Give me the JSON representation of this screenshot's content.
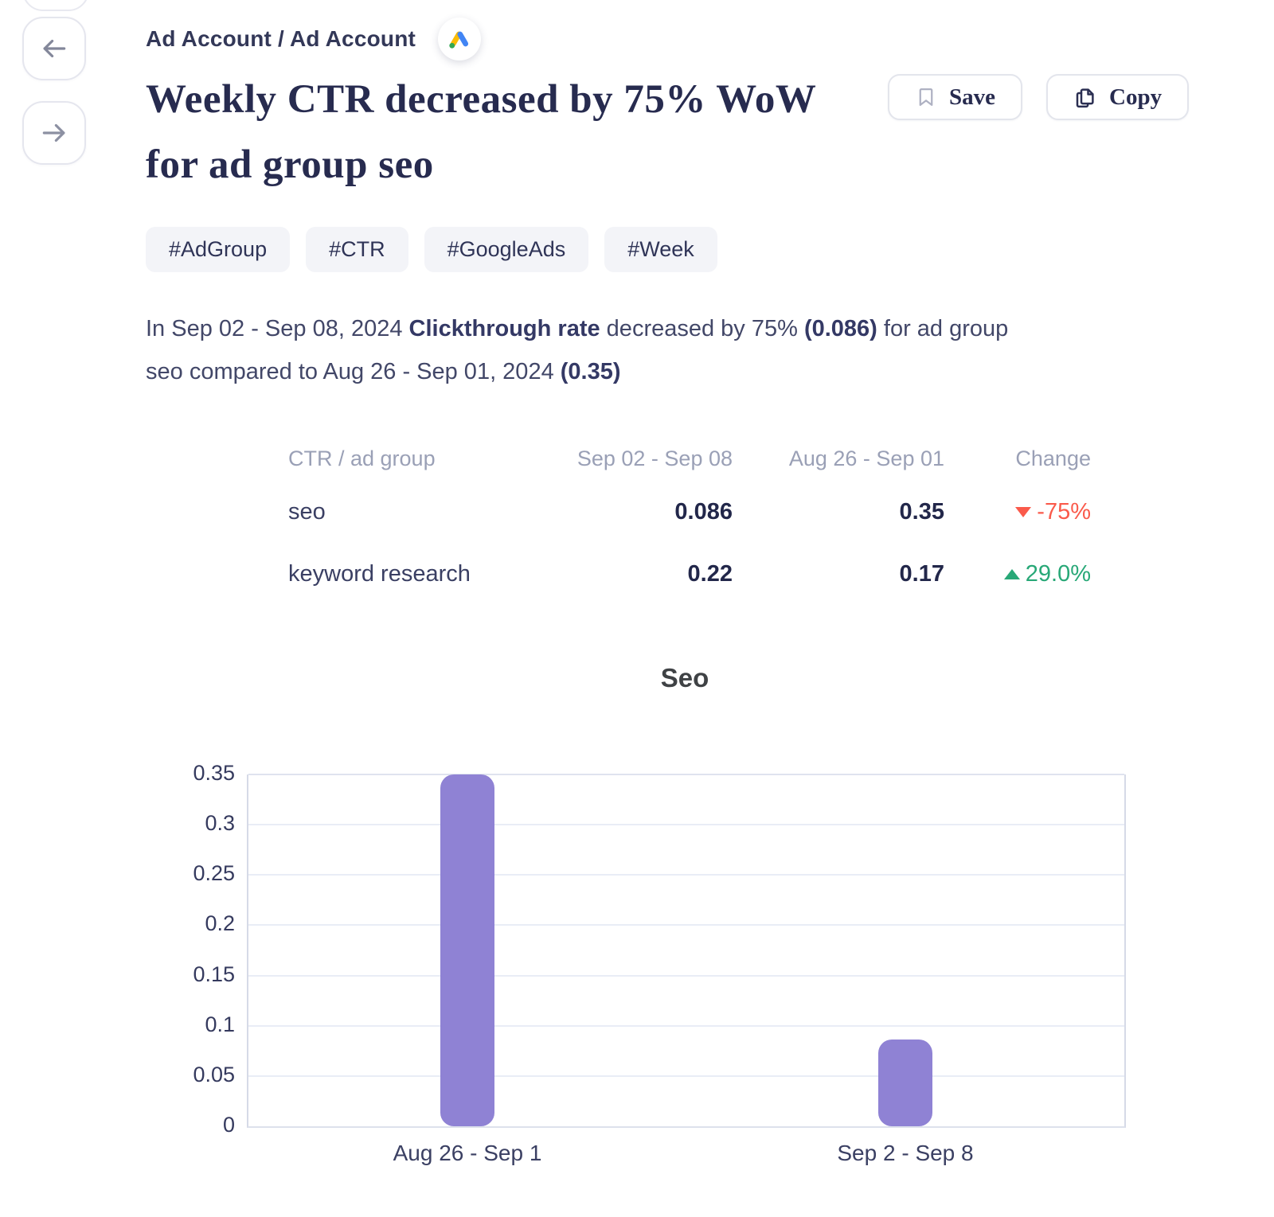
{
  "colors": {
    "accent_purple": "#8f82d4",
    "negative_red": "#fa5a4b",
    "positive_green": "#28a877"
  },
  "nav": {
    "back_icon": "arrow-left-icon",
    "forward_icon": "arrow-right-icon"
  },
  "breadcrumb": {
    "path": "Ad Account / Ad Account",
    "icon": "google-ads-icon"
  },
  "header": {
    "title_lines": [
      "Weekly CTR decreased by 75% WoW",
      "for ad group seo"
    ],
    "save_label": "Save",
    "save_icon": "bookmark-icon",
    "copy_label": "Copy",
    "copy_icon": "copy-icon"
  },
  "tags": [
    "#AdGroup",
    "#CTR",
    "#GoogleAds",
    "#Week"
  ],
  "summary": {
    "lines": [
      [
        {
          "t": "In Sep 02 - Sep 08, 2024 "
        },
        {
          "t": "Clickthrough rate",
          "b": true
        },
        {
          "t": " decreased by 75% "
        },
        {
          "t": "(0.086)",
          "b": true
        },
        {
          "t": " for ad group"
        }
      ],
      [
        {
          "t": "seo compared to Aug 26 - Sep 01, 2024 "
        },
        {
          "t": "(0.35)",
          "b": true
        }
      ]
    ]
  },
  "table": {
    "columns": [
      "CTR / ad group",
      "Sep 02 - Sep 08",
      "Aug 26 - Sep 01",
      "Change"
    ],
    "rows": [
      {
        "name": "seo",
        "current": "0.086",
        "previous": "0.35",
        "change": "-75%",
        "direction": "down"
      },
      {
        "name": "keyword research",
        "current": "0.22",
        "previous": "0.17",
        "change": "29.0%",
        "direction": "up"
      }
    ]
  },
  "chart_data": {
    "type": "bar",
    "title": "Seo",
    "categories": [
      "Aug 26 - Sep 1",
      "Sep 2 - Sep 8"
    ],
    "values": [
      0.35,
      0.086
    ],
    "series_name": "CTR",
    "xlabel": "",
    "ylabel": "",
    "ylim": [
      0,
      0.35
    ],
    "yticks": [
      0,
      0.05,
      0.1,
      0.15,
      0.2,
      0.25,
      0.3,
      0.35
    ],
    "grid": true,
    "legend": false,
    "bar_color": "#8f82d4"
  }
}
